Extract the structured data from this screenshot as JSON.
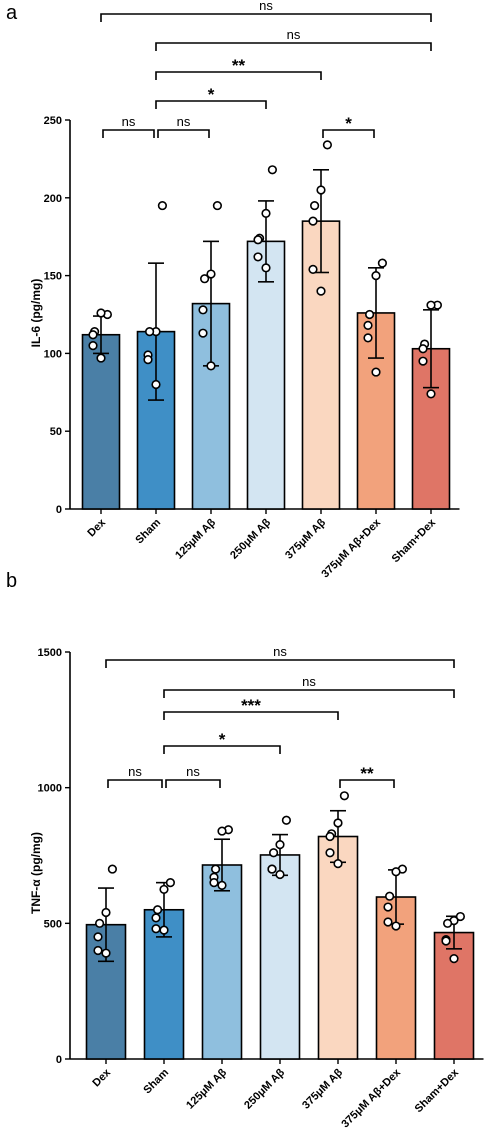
{
  "chart_data": [
    {
      "type": "bar",
      "panel_label": "a",
      "categories": [
        "Dex",
        "Sham",
        "125μM Aβ",
        "250μM Aβ",
        "375μM Aβ",
        "375μM Aβ+Dex",
        "Sham+Dex"
      ],
      "colors": [
        "#4a7fa6",
        "#3f8fc6",
        "#8fbfde",
        "#d3e5f2",
        "#fad7c0",
        "#f2a27c",
        "#df7566"
      ],
      "values": [
        112,
        114,
        132,
        172,
        185,
        126,
        103
      ],
      "sd": [
        12,
        44,
        40,
        26,
        33,
        29,
        25
      ],
      "points": [
        [
          125,
          126,
          114,
          112,
          105,
          97
        ],
        [
          195,
          114,
          114,
          99,
          96,
          80
        ],
        [
          195,
          151,
          148,
          128,
          113,
          92
        ],
        [
          218,
          190,
          174,
          173,
          162,
          155
        ],
        [
          234,
          205,
          195,
          185,
          154,
          140
        ],
        [
          158,
          150,
          125,
          118,
          110,
          88
        ],
        [
          131,
          131,
          106,
          103,
          95,
          74
        ]
      ],
      "ylabel": "IL-6 (pg/mg)",
      "ylim": [
        0,
        250
      ],
      "yticks": [
        "0",
        "50",
        "100",
        "150",
        "200",
        "250"
      ],
      "ytick_values": [
        0,
        50,
        100,
        150,
        200,
        250
      ],
      "comparisons": [
        {
          "from": 0,
          "to": 6,
          "label": "ns",
          "level": 6
        },
        {
          "from": 1,
          "to": 6,
          "label": "ns",
          "level": 5
        },
        {
          "from": 1,
          "to": 4,
          "label": "**",
          "level": 4
        },
        {
          "from": 1,
          "to": 3,
          "label": "*",
          "level": 3
        },
        {
          "from": 0,
          "to": 1,
          "label": "ns",
          "level": 1
        },
        {
          "from": 1,
          "to": 2,
          "label": "ns",
          "level": 1
        },
        {
          "from": 4,
          "to": 5,
          "label": "*",
          "level": 1
        }
      ]
    },
    {
      "type": "bar",
      "panel_label": "b",
      "categories": [
        "Dex",
        "Sham",
        "125μM Aβ",
        "250μM Aβ",
        "375μM Aβ",
        "375μM Aβ+Dex",
        "Sham+Dex"
      ],
      "colors": [
        "#4a7fa6",
        "#3f8fc6",
        "#8fbfde",
        "#d3e5f2",
        "#fad7c0",
        "#f2a27c",
        "#df7566"
      ],
      "values": [
        495,
        550,
        715,
        752,
        820,
        597,
        466
      ],
      "sd": [
        135,
        100,
        95,
        75,
        95,
        100,
        60
      ],
      "points": [
        [
          700,
          540,
          500,
          450,
          400,
          390
        ],
        [
          650,
          625,
          550,
          520,
          480,
          475
        ],
        [
          845,
          840,
          700,
          670,
          650,
          640
        ],
        [
          880,
          790,
          760,
          700,
          700,
          680
        ],
        [
          970,
          870,
          830,
          820,
          760,
          720
        ],
        [
          700,
          690,
          600,
          560,
          505,
          490
        ],
        [
          525,
          510,
          500,
          440,
          435,
          370
        ]
      ],
      "ylabel": "TNF-α (pg/mg)",
      "ylim": [
        0,
        1500
      ],
      "yticks": [
        "0",
        "500",
        "1000",
        "1500"
      ],
      "ytick_values": [
        0,
        500,
        1000,
        1500
      ],
      "comparisons": [
        {
          "from": 0,
          "to": 6,
          "label": "ns",
          "level": 6
        },
        {
          "from": 1,
          "to": 6,
          "label": "ns",
          "level": 5
        },
        {
          "from": 1,
          "to": 4,
          "label": "***",
          "level": 4
        },
        {
          "from": 1,
          "to": 3,
          "label": "*",
          "level": 3
        },
        {
          "from": 0,
          "to": 1,
          "label": "ns",
          "level": 1
        },
        {
          "from": 1,
          "to": 2,
          "label": "ns",
          "level": 1
        },
        {
          "from": 4,
          "to": 5,
          "label": "**",
          "level": 1
        }
      ]
    }
  ]
}
